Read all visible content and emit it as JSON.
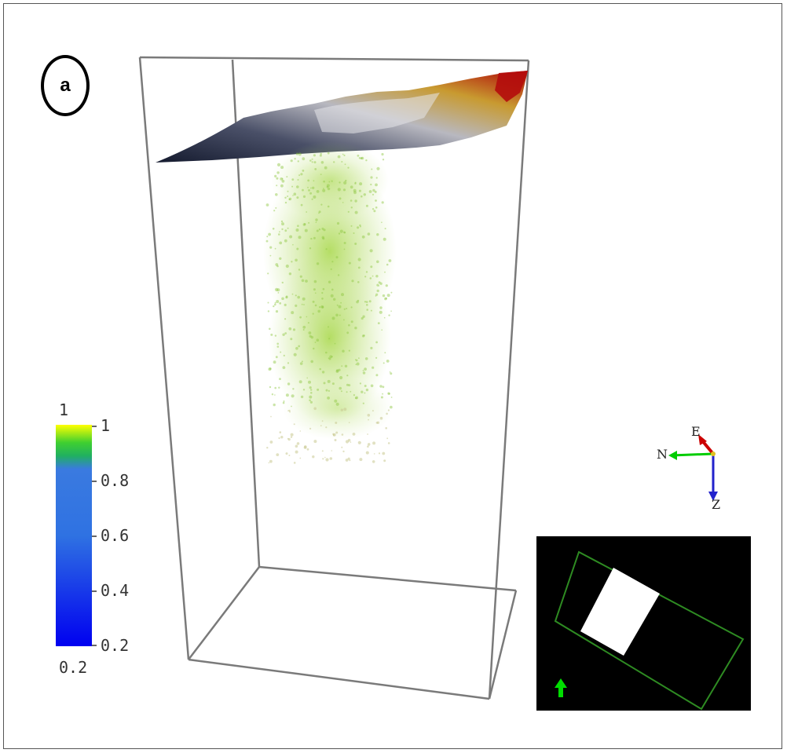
{
  "panel_label": "a",
  "colorbar": {
    "top_label": "1",
    "bottom_label": "0.2",
    "ticks": [
      "1",
      "0.8",
      "0.6",
      "0.4",
      "0.2"
    ],
    "min": 0.2,
    "max": 1,
    "colors": [
      "#0000ff",
      "#2a68e6",
      "#2f7ae0",
      "#20c040",
      "#ffff20"
    ]
  },
  "axes": {
    "n_label": "N",
    "e_label": "E",
    "z_label": "Z",
    "n_color": "#00cc00",
    "e_color": "#cc0000",
    "z_color": "#0000cc"
  },
  "minimap": {
    "background": "#000000",
    "outline_color": "#2e8b22",
    "patch_color": "#ffffff",
    "north_arrow_color": "#00dd00"
  },
  "point_cloud_color": "#9acd32",
  "surface_colors": [
    "#1e2235",
    "#7a7e8e",
    "#d8d8d8",
    "#c8a040",
    "#b01010"
  ]
}
